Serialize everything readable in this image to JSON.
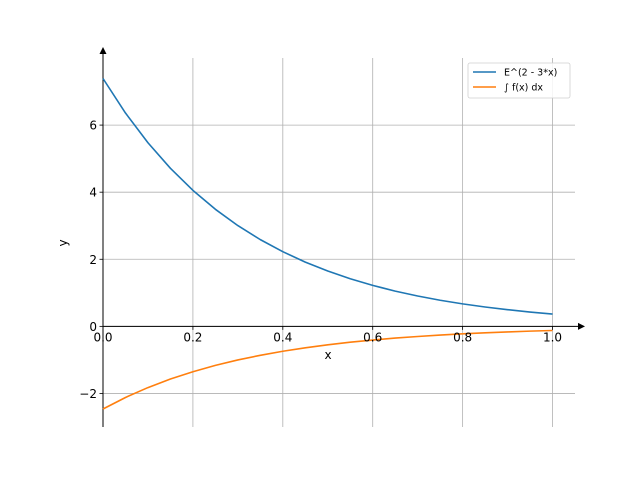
{
  "chart_data": {
    "type": "line",
    "title": "",
    "xlabel": "x",
    "ylabel": "y",
    "xlim": [
      0.0,
      1.05
    ],
    "ylim": [
      -3.0,
      8.0
    ],
    "xticks": [
      0.0,
      0.2,
      0.4,
      0.6,
      0.8,
      1.0
    ],
    "xtick_labels": [
      "0.0",
      "0.2",
      "0.4",
      "0.6",
      "0.8",
      "1.0"
    ],
    "yticks": [
      -2,
      0,
      2,
      4,
      6
    ],
    "ytick_labels": [
      "−2",
      "0",
      "2",
      "4",
      "6"
    ],
    "grid": true,
    "legend_position": "top-right",
    "series": [
      {
        "name": "E^(2 - 3*x)",
        "color": "#1f77b4",
        "x": [
          0.0,
          0.05,
          0.1,
          0.15,
          0.2,
          0.25,
          0.3,
          0.35,
          0.4,
          0.45,
          0.5,
          0.55,
          0.6,
          0.65,
          0.7,
          0.75,
          0.8,
          0.85,
          0.9,
          0.95,
          1.0
        ],
        "y": [
          7.389,
          6.36,
          5.474,
          4.711,
          4.055,
          3.49,
          3.004,
          2.586,
          2.226,
          1.916,
          1.649,
          1.419,
          1.221,
          1.051,
          0.905,
          0.779,
          0.67,
          0.577,
          0.497,
          0.427,
          0.368
        ]
      },
      {
        "name": "∫ f(x) dx",
        "color": "#ff7f0e",
        "x": [
          0.0,
          0.05,
          0.1,
          0.15,
          0.2,
          0.25,
          0.3,
          0.35,
          0.4,
          0.45,
          0.5,
          0.55,
          0.6,
          0.65,
          0.7,
          0.75,
          0.8,
          0.85,
          0.9,
          0.95,
          1.0
        ],
        "y": [
          -2.463,
          -2.12,
          -1.825,
          -1.57,
          -1.352,
          -1.163,
          -1.001,
          -0.862,
          -0.742,
          -0.639,
          -0.55,
          -0.473,
          -0.407,
          -0.35,
          -0.302,
          -0.26,
          -0.223,
          -0.192,
          -0.166,
          -0.142,
          -0.123
        ]
      }
    ]
  }
}
